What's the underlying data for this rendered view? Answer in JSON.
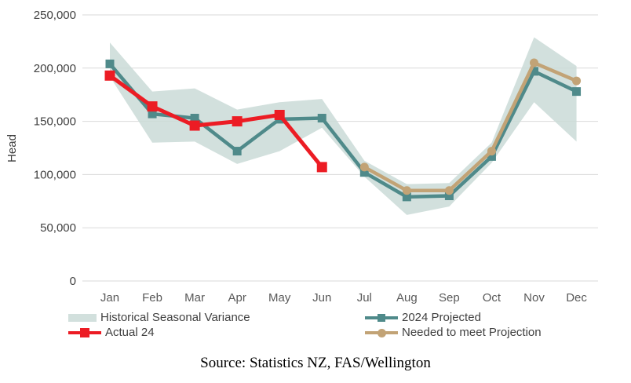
{
  "figure": {
    "source_note": "Source: Statistics NZ, FAS/Wellington"
  },
  "legend": {
    "items": [
      {
        "label": "Historical Seasonal Variance",
        "sample": "band-swatch",
        "color": "#d2e0dd"
      },
      {
        "label": "2024 Projected",
        "sample": "line-square",
        "color": "#4f8a8a"
      },
      {
        "label": "Actual 24",
        "sample": "line-square",
        "color": "#ec1c24"
      },
      {
        "label": "Needed to meet Projection",
        "sample": "line-circle",
        "color": "#c2a376"
      }
    ]
  },
  "chart_data": {
    "type": "line",
    "title": "",
    "xlabel": "",
    "ylabel": "Head",
    "ylim": [
      0,
      250000
    ],
    "ytick_interval": 50000,
    "ytick_labels": [
      "0",
      "50,000",
      "100,000",
      "150,000",
      "200,000",
      "250,000"
    ],
    "categories": [
      "Jan",
      "Feb",
      "Mar",
      "Apr",
      "May",
      "Jun",
      "Jul",
      "Aug",
      "Sep",
      "Oct",
      "Nov",
      "Dec"
    ],
    "grid": true,
    "legend_position": "bottom",
    "colors": {
      "grid": "#d9d9d9",
      "axis_text": "#404040",
      "tick_text": "#595959"
    },
    "band": {
      "name": "Historical Seasonal Variance",
      "fill": "#cadad7",
      "opacity": 0.85,
      "lower": [
        192000,
        130000,
        131000,
        110000,
        122000,
        144000,
        98000,
        62000,
        70000,
        111000,
        168000,
        131000
      ],
      "upper": [
        224000,
        178000,
        181000,
        161000,
        168000,
        171000,
        113000,
        91000,
        92000,
        130000,
        229000,
        202000
      ]
    },
    "series": [
      {
        "name": "2024 Projected",
        "color": "#4f8a8a",
        "marker": "square",
        "marker_size": 11,
        "line_width": 4.5,
        "values": [
          204000,
          157000,
          153000,
          122000,
          152000,
          153000,
          102000,
          79000,
          80000,
          117000,
          197000,
          178000
        ]
      },
      {
        "name": "Needed to meet Projection",
        "color": "#c2a376",
        "marker": "circle",
        "marker_size": 11,
        "line_width": 4.5,
        "values": [
          null,
          null,
          null,
          null,
          null,
          null,
          107000,
          85000,
          85000,
          122000,
          205000,
          188000
        ]
      },
      {
        "name": "Actual 24",
        "color": "#ec1c24",
        "marker": "square",
        "marker_size": 13,
        "line_width": 5,
        "values": [
          193000,
          164000,
          146000,
          150000,
          156000,
          107000,
          null,
          null,
          null,
          null,
          null,
          null
        ]
      }
    ]
  }
}
